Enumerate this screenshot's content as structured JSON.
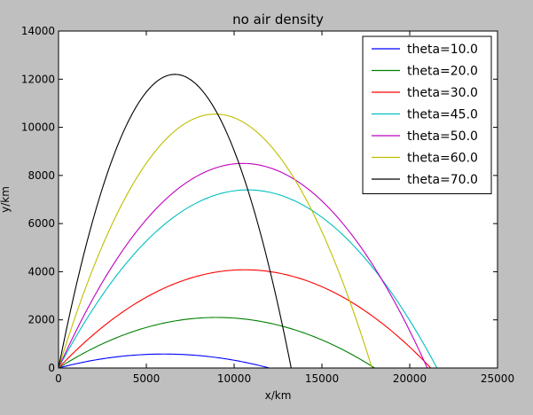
{
  "chart_data": {
    "type": "line",
    "title": "no air density",
    "xlabel": "x/km",
    "ylabel": "y/km",
    "xlim": [
      0,
      25000
    ],
    "ylim": [
      0,
      14000
    ],
    "xticks": [
      0,
      5000,
      10000,
      15000,
      20000,
      25000
    ],
    "yticks": [
      0,
      2000,
      4000,
      6000,
      8000,
      10000,
      12000,
      14000
    ],
    "grid": false,
    "legend_position": "top-right",
    "series": [
      {
        "name": "theta=10.0",
        "color": "#0000ff",
        "range": 12000,
        "max_height": 580
      },
      {
        "name": "theta=20.0",
        "color": "#008000",
        "range": 18000,
        "max_height": 2100
      },
      {
        "name": "theta=30.0",
        "color": "#ff0000",
        "range": 21200,
        "max_height": 4080
      },
      {
        "name": "theta=45.0",
        "color": "#00bfbf",
        "range": 21550,
        "max_height": 7400
      },
      {
        "name": "theta=50.0",
        "color": "#bf00bf",
        "range": 21000,
        "max_height": 8500
      },
      {
        "name": "theta=60.0",
        "color": "#bfbf00",
        "range": 17850,
        "max_height": 10550
      },
      {
        "name": "theta=70.0",
        "color": "#000000",
        "range": 13250,
        "max_height": 12200
      }
    ]
  }
}
